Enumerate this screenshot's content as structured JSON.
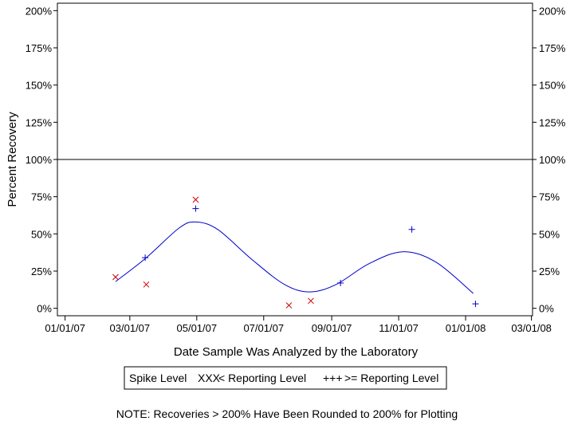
{
  "chart_data": {
    "type": "scatter",
    "xlabel": "Date Sample Was Analyzed by the Laboratory",
    "ylabel": "Percent Recovery",
    "y_ticks": [
      "0%",
      "25%",
      "50%",
      "75%",
      "100%",
      "125%",
      "150%",
      "175%",
      "200%"
    ],
    "y_tick_values": [
      0,
      25,
      50,
      75,
      100,
      125,
      150,
      175,
      200
    ],
    "ylim": [
      -5,
      205
    ],
    "x_ticks": [
      "01/01/07",
      "03/01/07",
      "05/01/07",
      "07/01/07",
      "09/01/07",
      "11/01/07",
      "01/01/08",
      "03/01/08"
    ],
    "x_tick_dates": [
      "2007-01-01",
      "2007-03-01",
      "2007-05-01",
      "2007-07-01",
      "2007-09-01",
      "2007-11-01",
      "2008-01-01",
      "2008-03-01"
    ],
    "xlim": [
      "2006-12-25",
      "2008-03-02"
    ],
    "reference_line": 100,
    "legend": {
      "title": "Spike Level",
      "items": [
        {
          "marker": "XXX",
          "label": "< Reporting Level",
          "color": "#cc0000"
        },
        {
          "marker": "+++",
          "label": ">= Reporting Level",
          "color": "#0000cc"
        }
      ]
    },
    "series": [
      {
        "marker": "x",
        "color": "#cc0000",
        "points": [
          {
            "x": "2007-02-16",
            "y": 21
          },
          {
            "x": "2007-03-16",
            "y": 16
          },
          {
            "x": "2007-04-30",
            "y": 73
          },
          {
            "x": "2007-07-24",
            "y": 2
          },
          {
            "x": "2007-08-13",
            "y": 5
          }
        ]
      },
      {
        "marker": "+",
        "color": "#0000cc",
        "points": [
          {
            "x": "2007-03-15",
            "y": 34
          },
          {
            "x": "2007-04-30",
            "y": 67
          },
          {
            "x": "2007-09-09",
            "y": 17
          },
          {
            "x": "2007-11-13",
            "y": 53
          },
          {
            "x": "2008-01-10",
            "y": 3
          }
        ]
      }
    ],
    "trend_line": {
      "color": "#0000cc",
      "points": [
        {
          "x": "2007-02-16",
          "y": 18
        },
        {
          "x": "2007-03-16",
          "y": 34
        },
        {
          "x": "2007-04-15",
          "y": 54
        },
        {
          "x": "2007-04-30",
          "y": 58
        },
        {
          "x": "2007-05-20",
          "y": 53
        },
        {
          "x": "2007-06-20",
          "y": 33
        },
        {
          "x": "2007-07-20",
          "y": 16
        },
        {
          "x": "2007-08-12",
          "y": 11
        },
        {
          "x": "2007-09-05",
          "y": 16
        },
        {
          "x": "2007-10-05",
          "y": 30
        },
        {
          "x": "2007-11-05",
          "y": 38
        },
        {
          "x": "2007-12-05",
          "y": 31
        },
        {
          "x": "2008-01-08",
          "y": 10
        }
      ]
    }
  },
  "note": "NOTE: Recoveries > 200% Have Been Rounded to 200% for Plotting"
}
